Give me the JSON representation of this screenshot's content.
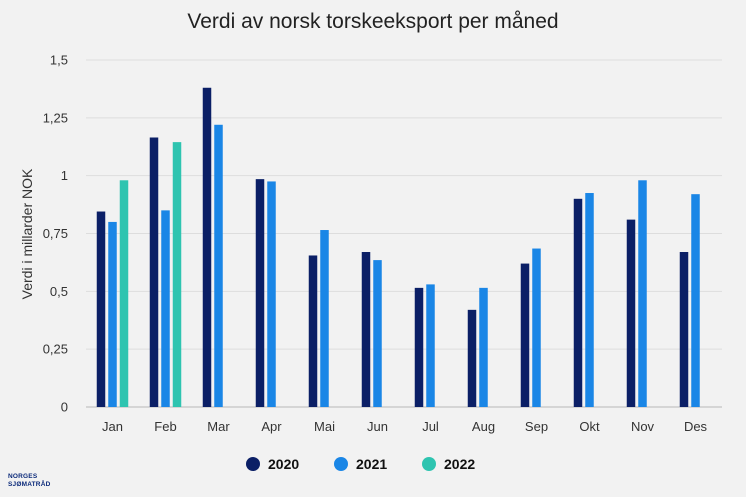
{
  "chart_data": {
    "type": "bar",
    "title": "Verdi av norsk torskeeksport per måned",
    "ylabel": "Verdi i millarder NOK",
    "xlabel": "",
    "ylim": [
      0,
      1.5
    ],
    "yticks": [
      "0",
      "0,25",
      "0,5",
      "0,75",
      "1",
      "1,25",
      "1,5"
    ],
    "ytick_values": [
      0,
      0.25,
      0.5,
      0.75,
      1,
      1.25,
      1.5
    ],
    "categories": [
      "Jan",
      "Feb",
      "Mar",
      "Apr",
      "Mai",
      "Jun",
      "Jul",
      "Aug",
      "Sep",
      "Okt",
      "Nov",
      "Des"
    ],
    "series": [
      {
        "name": "2020",
        "color": "#0b1f66",
        "values": [
          0.845,
          1.165,
          1.38,
          0.985,
          0.655,
          0.67,
          0.515,
          0.42,
          0.62,
          0.9,
          0.81,
          0.67
        ]
      },
      {
        "name": "2021",
        "color": "#1a86e6",
        "values": [
          0.8,
          0.85,
          1.22,
          0.975,
          0.765,
          0.635,
          0.53,
          0.515,
          0.685,
          0.925,
          0.98,
          0.92
        ]
      },
      {
        "name": "2022",
        "color": "#2ec4b0",
        "values": [
          0.98,
          1.145,
          null,
          null,
          null,
          null,
          null,
          null,
          null,
          null,
          null,
          null
        ]
      }
    ],
    "grid": true,
    "legend": "bottom-center"
  },
  "logo": {
    "line1": "NORGES",
    "line2": "SJØMATRÅD"
  }
}
